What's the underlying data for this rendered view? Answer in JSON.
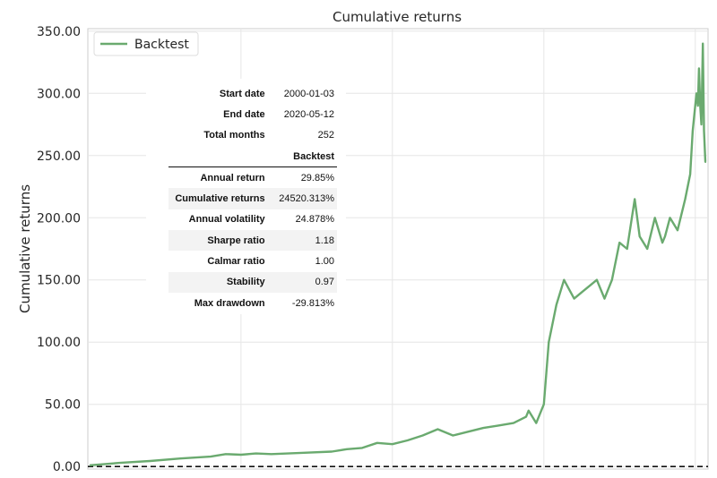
{
  "chart_data": {
    "type": "line",
    "title": "Cumulative returns",
    "xlabel": "",
    "ylabel": "Cumulative returns",
    "ylim": [
      -2,
      352
    ],
    "y_ticks": [
      "0.00",
      "50.00",
      "100.00",
      "150.00",
      "200.00",
      "250.00",
      "300.00",
      "350.00"
    ],
    "x_range": [
      "2000-01-03",
      "2020-05-12"
    ],
    "grid": true,
    "legend_position": "top-left",
    "baseline": 0,
    "series": [
      {
        "name": "Backtest",
        "color": "#6aaa6f",
        "x": [
          "2000-01-03",
          "2001-01-01",
          "2002-01-01",
          "2003-01-01",
          "2004-01-01",
          "2004-07-01",
          "2005-01-01",
          "2005-07-01",
          "2006-01-01",
          "2007-01-01",
          "2008-01-01",
          "2008-07-01",
          "2009-01-01",
          "2009-07-01",
          "2010-01-01",
          "2010-07-01",
          "2011-01-01",
          "2011-07-01",
          "2012-01-01",
          "2012-07-01",
          "2013-01-01",
          "2013-07-01",
          "2014-01-01",
          "2014-06-01",
          "2014-07-01",
          "2014-10-01",
          "2015-01-01",
          "2015-03-01",
          "2015-06-01",
          "2015-09-01",
          "2016-01-01",
          "2016-04-01",
          "2016-07-01",
          "2016-10-01",
          "2017-01-01",
          "2017-04-01",
          "2017-07-01",
          "2017-10-01",
          "2018-01-01",
          "2018-03-01",
          "2018-06-01",
          "2018-09-01",
          "2018-12-01",
          "2019-01-01",
          "2019-03-01",
          "2019-06-01",
          "2019-09-01",
          "2019-11-01",
          "2019-12-01",
          "2020-01-15",
          "2020-02-01",
          "2020-02-15",
          "2020-03-01",
          "2020-03-15",
          "2020-04-01",
          "2020-04-15",
          "2020-05-01",
          "2020-05-12"
        ],
        "y": [
          1.0,
          3.0,
          4.5,
          6.5,
          8.0,
          10.0,
          9.5,
          10.5,
          10.0,
          11.0,
          12.0,
          14.0,
          15.0,
          19.0,
          18.0,
          21.0,
          25.0,
          30.0,
          25.0,
          28.0,
          31.0,
          33.0,
          35.0,
          40.0,
          45.0,
          35.0,
          50.0,
          100.0,
          130.0,
          150.0,
          135.0,
          140.0,
          145.0,
          150.0,
          135.0,
          150.0,
          180.0,
          175.0,
          215.0,
          185.0,
          175.0,
          200.0,
          180.0,
          185.0,
          200.0,
          190.0,
          215.0,
          235.0,
          270.0,
          300.0,
          290.0,
          320.0,
          290.0,
          275.0,
          340.0,
          270.0,
          245.0,
          245.0
        ]
      }
    ]
  },
  "stats_table": {
    "header_rows": [
      {
        "label": "Start date",
        "value": "2000-01-03"
      },
      {
        "label": "End date",
        "value": "2020-05-12"
      },
      {
        "label": "Total months",
        "value": "252"
      }
    ],
    "column_header": "Backtest",
    "rows": [
      {
        "label": "Annual return",
        "value": "29.85%"
      },
      {
        "label": "Cumulative returns",
        "value": "24520.313%"
      },
      {
        "label": "Annual volatility",
        "value": "24.878%"
      },
      {
        "label": "Sharpe ratio",
        "value": "1.18"
      },
      {
        "label": "Calmar ratio",
        "value": "1.00"
      },
      {
        "label": "Stability",
        "value": "0.97"
      },
      {
        "label": "Max drawdown",
        "value": "-29.813%"
      }
    ]
  }
}
